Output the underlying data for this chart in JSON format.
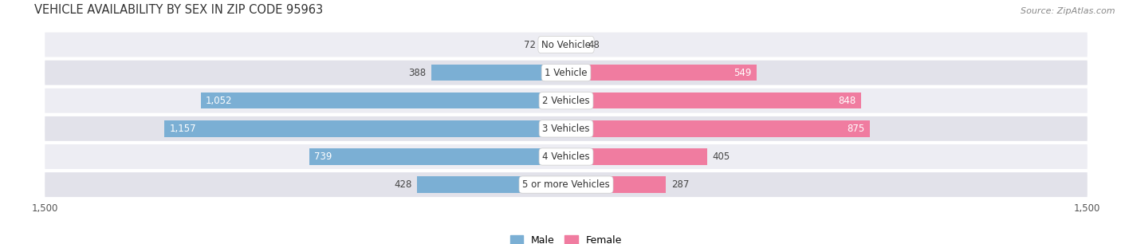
{
  "title": "VEHICLE AVAILABILITY BY SEX IN ZIP CODE 95963",
  "source": "Source: ZipAtlas.com",
  "categories": [
    "No Vehicle",
    "1 Vehicle",
    "2 Vehicles",
    "3 Vehicles",
    "4 Vehicles",
    "5 or more Vehicles"
  ],
  "male_values": [
    72,
    388,
    1052,
    1157,
    739,
    428
  ],
  "female_values": [
    48,
    549,
    848,
    875,
    405,
    287
  ],
  "male_color": "#7bafd4",
  "female_color": "#f07ca0",
  "row_bg_color_1": "#ededf3",
  "row_bg_color_2": "#e2e2ea",
  "axis_max": 1500,
  "legend_male": "Male",
  "legend_female": "Female",
  "label_fontsize": 8.5,
  "title_fontsize": 10.5,
  "source_fontsize": 8,
  "inside_label_threshold": 500
}
